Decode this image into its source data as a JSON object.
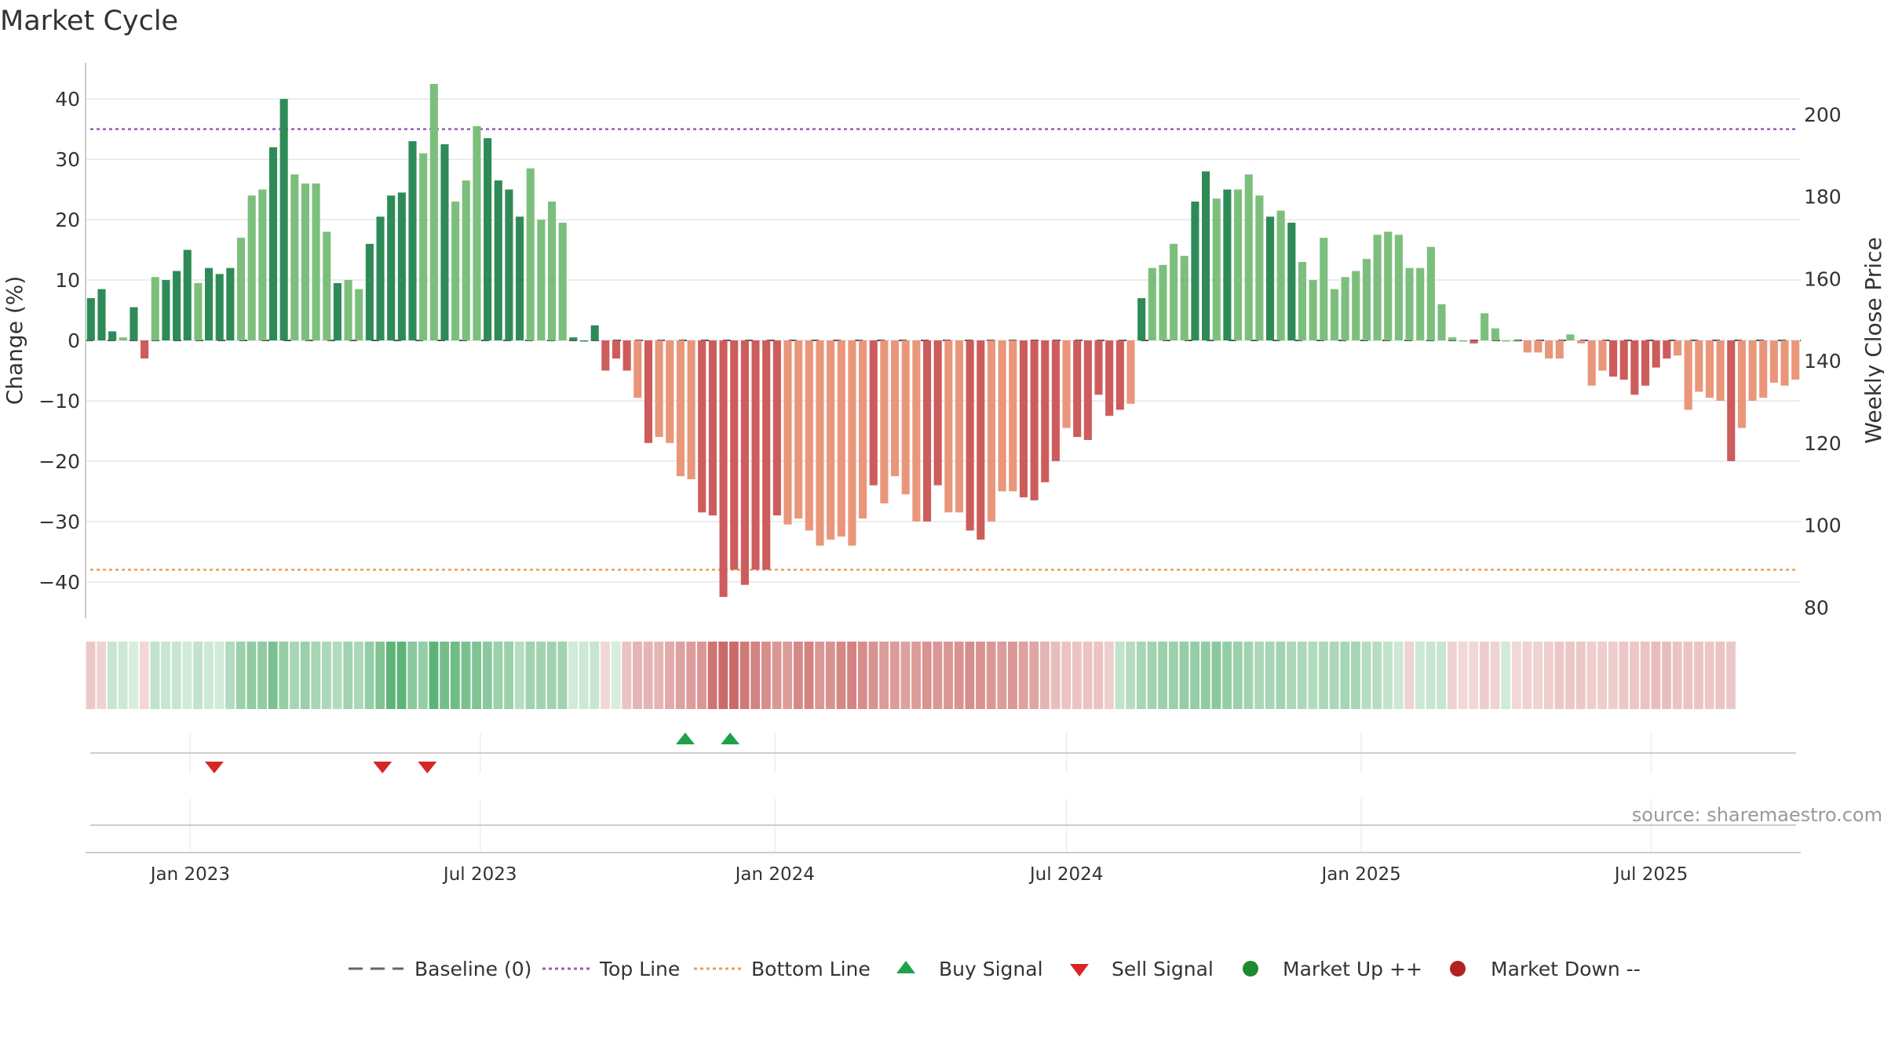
{
  "chart_data": {
    "type": "bar",
    "title": "Market Cycle",
    "ylabel": "Change (%)",
    "y2label": "Weekly Close Price",
    "ylim": [
      -46,
      46
    ],
    "y2lim": [
      77.4,
      212.6
    ],
    "yticks": [
      40,
      30,
      20,
      10,
      0,
      -10,
      -20,
      -30,
      -40
    ],
    "y2ticks": [
      200,
      180,
      160,
      140,
      120,
      100,
      80
    ],
    "top_line": 35,
    "bottom_line": -38,
    "x_start": "2022-10-31",
    "x_end": "2025-09-29",
    "xticks": [
      {
        "label": "Jan 2023",
        "date": "2023-01-01"
      },
      {
        "label": "Jul 2023",
        "date": "2023-07-01"
      },
      {
        "label": "Jan 2024",
        "date": "2024-01-01"
      },
      {
        "label": "Jul 2024",
        "date": "2024-07-01"
      },
      {
        "label": "Jan 2025",
        "date": "2025-01-01"
      },
      {
        "label": "Jul 2025",
        "date": "2025-07-01"
      }
    ],
    "values": [
      7,
      8.5,
      1.5,
      0.5,
      5.5,
      -3,
      10.5,
      10,
      11.5,
      15,
      9.5,
      12,
      11,
      12,
      17,
      24,
      25,
      32,
      40,
      27.5,
      26,
      26,
      18,
      9.5,
      10,
      8.5,
      16,
      20.5,
      24,
      24.5,
      33,
      31,
      42.5,
      32.5,
      23,
      26.5,
      35.5,
      33.5,
      26.5,
      25,
      20.5,
      28.5,
      20,
      23,
      19.5,
      0.5,
      0,
      2.5,
      -5,
      -3,
      -5,
      -9.5,
      -17,
      -16,
      -17,
      -22.5,
      -23,
      -28.5,
      -29,
      -42.5,
      -38,
      -40.5,
      -38,
      -38,
      -29,
      -30.5,
      -29.5,
      -31.5,
      -34,
      -33,
      -32.5,
      -34,
      -29.5,
      -24,
      -27,
      -22.5,
      -25.5,
      -30,
      -30,
      -24,
      -28.5,
      -28.5,
      -31.5,
      -33,
      -30,
      -25,
      -25,
      -26,
      -26.5,
      -23.5,
      -20,
      -14.5,
      -16,
      -16.5,
      -9,
      -12.5,
      -11.5,
      -10.5,
      7,
      12,
      12.5,
      16,
      14,
      23,
      28,
      23.5,
      25,
      25,
      27.5,
      24,
      20.5,
      21.5,
      19.5,
      13,
      10,
      17,
      8.5,
      10.5,
      11.5,
      13.5,
      17.5,
      18,
      17.5,
      12,
      12,
      15.5,
      6,
      0.5,
      0,
      -0.5,
      4.5,
      2,
      0,
      0,
      -2,
      -2,
      -3,
      -3,
      1,
      -0.5,
      -7.5,
      -5,
      -6,
      -6.5,
      -9,
      -7.5,
      -4.5,
      -3,
      -2.5,
      -11.5,
      -8.5,
      -9.5,
      -10,
      -20,
      -14.5,
      -10,
      -9.5,
      -7,
      -7.5,
      -6.5
    ],
    "bar_shades": "dddlddldddldddlllddlllldlldddddlldlllddddllllddddddldllllddddddddlllllllldllllddllddlllddddldddddldllllddldllldldlllllllllllllllldllllllllllllddddddllllldllllll",
    "band_changes": [
      -4,
      -2,
      3,
      2,
      0,
      -1,
      4,
      3,
      3,
      1,
      4,
      2,
      1,
      7,
      11,
      13,
      13,
      17,
      12,
      9,
      11,
      9,
      8,
      7,
      10,
      8,
      12,
      16,
      22,
      22,
      14,
      12,
      22,
      18,
      19,
      17,
      16,
      14,
      11,
      11,
      6,
      10,
      10,
      10,
      10,
      1,
      2,
      3,
      -1,
      0,
      -5,
      -8,
      -8,
      -8,
      -10,
      -12,
      -13,
      -14,
      -21,
      -23,
      -23,
      -20,
      -18,
      -16,
      -14,
      -13,
      -17,
      -18,
      -14,
      -15,
      -17,
      -18,
      -16,
      -15,
      -13,
      -13,
      -12,
      -13,
      -15,
      -14,
      -14,
      -15,
      -16,
      -15,
      -14,
      -13,
      -14,
      -12,
      -11,
      -8,
      -6,
      -5,
      -5,
      -5,
      -5,
      -3,
      4,
      6,
      9,
      10,
      11,
      11,
      12,
      12,
      13,
      14,
      12,
      11,
      10,
      8,
      9,
      10,
      8,
      8,
      7,
      8,
      8,
      9,
      9,
      6,
      6,
      4,
      2,
      -2,
      2,
      3,
      3,
      -2,
      -1,
      -1,
      -3,
      -2,
      1,
      -1,
      -2,
      -2,
      -3,
      -4,
      -4,
      -4,
      -3,
      -3,
      -3,
      -4,
      -4,
      -5,
      -6,
      -6,
      -5,
      -5,
      -5,
      -4,
      -5,
      -4
    ],
    "sell_signals": [
      "2023-01-16",
      "2023-05-01",
      "2023-05-29"
    ],
    "buy_signals": [
      "2023-11-06",
      "2023-12-04"
    ],
    "colors": {
      "up_dark": "#2e8b57",
      "up_light": "#7cbf7c",
      "down_dark": "#cd5c5c",
      "down_light": "#e9967a",
      "top_line": "#9b59b6",
      "bottom_line": "#e6a157",
      "baseline": "#555555",
      "buy": "#1fa14a",
      "sell": "#d62728",
      "market_up": "#1e8c2e",
      "market_down": "#b22222",
      "grid": "#e6e6e6",
      "axis": "#cccccc",
      "band_up": "#3aa35a",
      "band_down": "#c0504d"
    },
    "legend": [
      {
        "label": "Baseline (0)",
        "kind": "dash",
        "color": "#666666"
      },
      {
        "label": "Top Line",
        "kind": "dot",
        "color": "#9b59b6"
      },
      {
        "label": "Bottom Line",
        "kind": "dot",
        "color": "#e6a157"
      },
      {
        "label": "Buy Signal",
        "kind": "up",
        "color": "#1fa14a"
      },
      {
        "label": "Sell Signal",
        "kind": "down",
        "color": "#d62728"
      },
      {
        "label": "Market Up ++",
        "kind": "circle",
        "color": "#1e8c2e"
      },
      {
        "label": "Market Down --",
        "kind": "circle",
        "color": "#b22222"
      }
    ],
    "source": "source: sharemaestro.com"
  }
}
